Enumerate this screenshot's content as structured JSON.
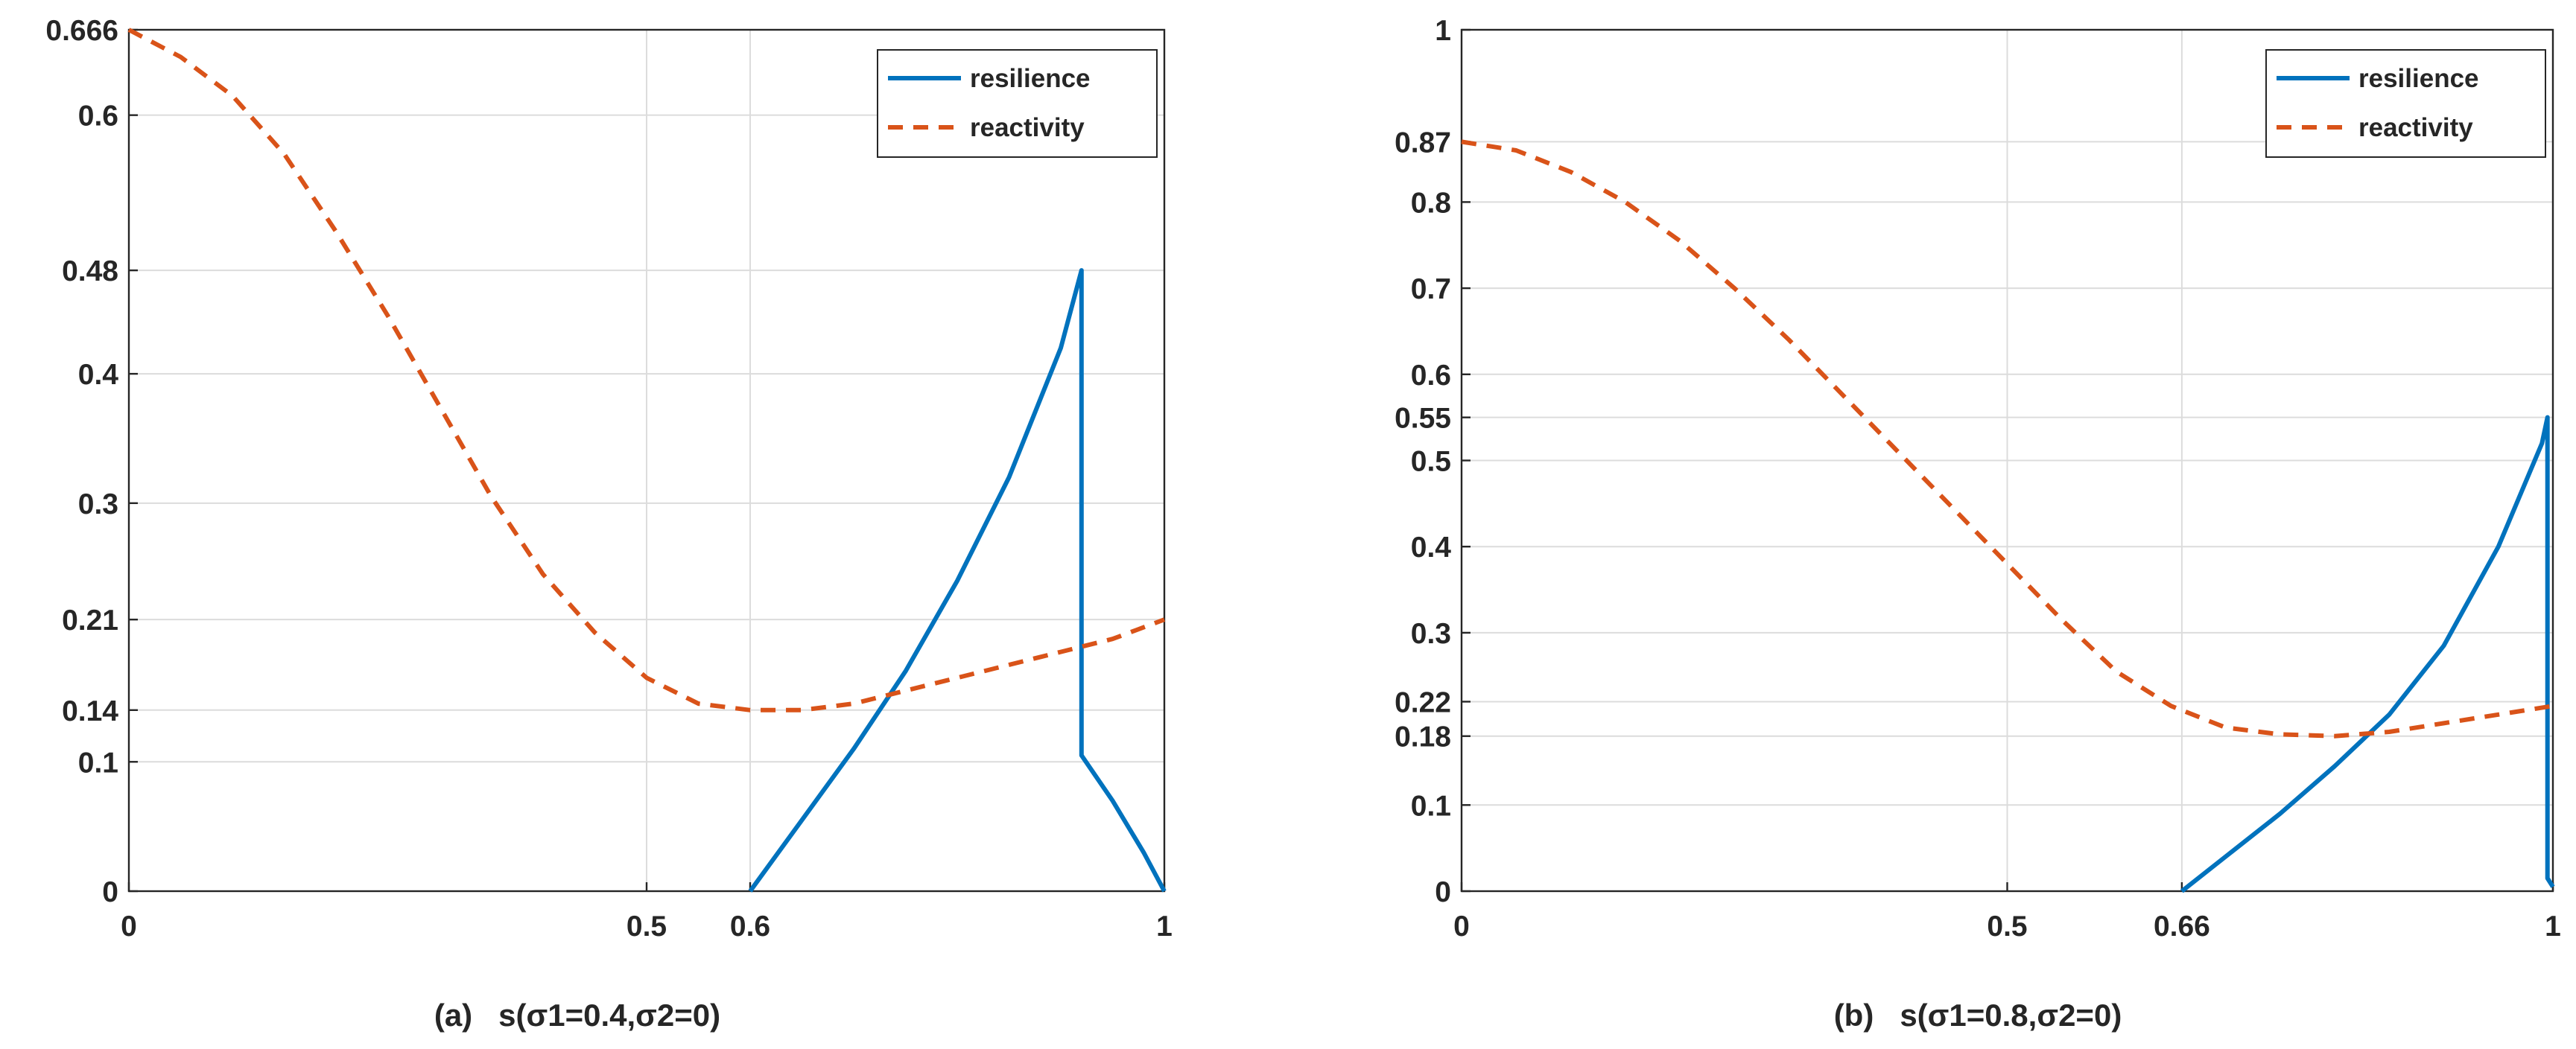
{
  "chart_data": [
    {
      "type": "line",
      "caption": "(a)   s(σ1=0.4,σ2=0)",
      "xlim": [
        0,
        1
      ],
      "ylim": [
        0,
        0.666
      ],
      "x_ticks": [
        0,
        0.5,
        0.6,
        1
      ],
      "x_tick_labels": [
        "0",
        "0.5",
        "0.6",
        "1"
      ],
      "y_ticks": [
        0,
        0.1,
        0.14,
        0.21,
        0.3,
        0.4,
        0.48,
        0.6,
        0.666
      ],
      "y_tick_labels": [
        "0",
        "0.1",
        "0.14",
        "0.21",
        "0.3",
        "0.4",
        "0.48",
        "0.6",
        "0.666"
      ],
      "legend": {
        "position": "top-right",
        "entries": [
          "resilience",
          "reactivity"
        ]
      },
      "series": [
        {
          "name": "resilience",
          "style": "solid",
          "color": "#0072BD",
          "x": [
            0.6,
            0.65,
            0.7,
            0.75,
            0.8,
            0.85,
            0.9,
            0.92,
            0.92,
            0.95,
            0.98,
            1.0
          ],
          "y": [
            0.0,
            0.055,
            0.11,
            0.17,
            0.24,
            0.32,
            0.42,
            0.48,
            0.105,
            0.07,
            0.03,
            0.0
          ]
        },
        {
          "name": "reactivity",
          "style": "dashed",
          "color": "#D95319",
          "x": [
            0,
            0.05,
            0.1,
            0.15,
            0.2,
            0.25,
            0.3,
            0.35,
            0.4,
            0.45,
            0.5,
            0.55,
            0.6,
            0.65,
            0.7,
            0.75,
            0.8,
            0.85,
            0.9,
            0.95,
            1.0
          ],
          "y": [
            0.666,
            0.645,
            0.615,
            0.57,
            0.51,
            0.445,
            0.375,
            0.305,
            0.245,
            0.2,
            0.165,
            0.145,
            0.14,
            0.14,
            0.145,
            0.155,
            0.165,
            0.175,
            0.185,
            0.195,
            0.21
          ]
        }
      ]
    },
    {
      "type": "line",
      "caption": "(b)   s(σ1=0.8,σ2=0)",
      "xlim": [
        0,
        1
      ],
      "ylim": [
        0,
        1
      ],
      "x_ticks": [
        0,
        0.5,
        0.66,
        1
      ],
      "x_tick_labels": [
        "0",
        "0.5",
        "0.66",
        "1"
      ],
      "y_ticks": [
        0,
        0.1,
        0.18,
        0.22,
        0.3,
        0.4,
        0.5,
        0.55,
        0.6,
        0.7,
        0.8,
        0.87,
        1
      ],
      "y_tick_labels": [
        "0",
        "0.1",
        "0.18",
        "0.22",
        "0.3",
        "0.4",
        "0.5",
        "0.55",
        "0.6",
        "0.7",
        "0.8",
        "0.87",
        "1"
      ],
      "legend": {
        "position": "top-right",
        "entries": [
          "resilience",
          "reactivity"
        ]
      },
      "series": [
        {
          "name": "resilience",
          "style": "solid",
          "color": "#0072BD",
          "x": [
            0.66,
            0.7,
            0.75,
            0.8,
            0.85,
            0.9,
            0.95,
            0.99,
            0.995,
            0.995,
            1.0
          ],
          "y": [
            0.0,
            0.04,
            0.09,
            0.145,
            0.205,
            0.285,
            0.4,
            0.52,
            0.55,
            0.015,
            0.005
          ]
        },
        {
          "name": "reactivity",
          "style": "dashed",
          "color": "#D95319",
          "x": [
            0,
            0.05,
            0.1,
            0.15,
            0.2,
            0.25,
            0.3,
            0.35,
            0.4,
            0.45,
            0.5,
            0.55,
            0.6,
            0.65,
            0.7,
            0.75,
            0.8,
            0.85,
            0.9,
            0.95,
            1.0
          ],
          "y": [
            0.87,
            0.86,
            0.835,
            0.8,
            0.755,
            0.7,
            0.64,
            0.575,
            0.51,
            0.445,
            0.38,
            0.315,
            0.255,
            0.215,
            0.19,
            0.182,
            0.18,
            0.185,
            0.195,
            0.205,
            0.215
          ]
        }
      ]
    }
  ]
}
